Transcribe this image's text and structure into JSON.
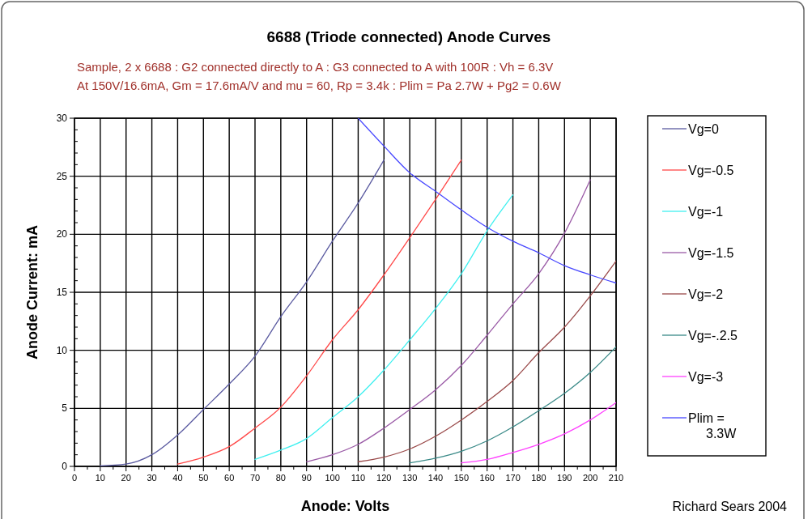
{
  "chart_data": {
    "type": "line",
    "title": "6688 (Triode connected) Anode Curves",
    "subtitle": "Sample, 2 x 6688 : G2 connected directly to A : G3 connected to A with 100R : Vh = 6.3V\nAt 150V/16.6mA, Gm = 17.6mA/V and mu = 60, Rp = 3.4k : Plim = Pa 2.7W + Pg2 = 0.6W",
    "xlabel": "Anode: Volts",
    "ylabel": "Anode Current: mA",
    "annotations": [
      "Richard Sears 2004"
    ],
    "xlim": [
      0,
      210
    ],
    "ylim": [
      0,
      30
    ],
    "xticks": [
      0,
      {
        "value": 5,
        "label": null
      },
      10,
      {
        "value": 15,
        "label": null
      },
      20,
      {
        "value": 25,
        "label": null
      },
      30,
      {
        "value": 35,
        "label": null
      },
      40,
      {
        "value": 45,
        "label": null
      },
      50,
      {
        "value": 55,
        "label": null
      },
      60,
      {
        "value": 65,
        "label": null
      },
      70,
      {
        "value": 75,
        "label": null
      },
      80,
      {
        "value": 85,
        "label": null
      },
      90,
      {
        "value": 95,
        "label": null
      },
      100,
      {
        "value": 105,
        "label": null
      },
      110,
      {
        "value": 115,
        "label": null
      },
      120,
      {
        "value": 125,
        "label": null
      },
      130,
      {
        "value": 135,
        "label": null
      },
      140,
      {
        "value": 145,
        "label": null
      },
      150,
      {
        "value": 155,
        "label": null
      },
      160,
      {
        "value": 165,
        "label": null
      },
      170,
      {
        "value": 175,
        "label": null
      },
      180,
      {
        "value": 185,
        "label": null
      },
      190,
      {
        "value": 195,
        "label": null
      },
      200,
      {
        "value": 205,
        "label": null
      },
      210
    ],
    "yticks": [
      0,
      {
        "value": 1,
        "label": null
      },
      {
        "value": 2,
        "label": null
      },
      {
        "value": 3,
        "label": null
      },
      {
        "value": 4,
        "label": null
      },
      5,
      {
        "value": 6,
        "label": null
      },
      {
        "value": 7,
        "label": null
      },
      {
        "value": 8,
        "label": null
      },
      {
        "value": 9,
        "label": null
      },
      10,
      {
        "value": 11,
        "label": null
      },
      {
        "value": 12,
        "label": null
      },
      {
        "value": 13,
        "label": null
      },
      {
        "value": 14,
        "label": null
      },
      15,
      {
        "value": 16,
        "label": null
      },
      {
        "value": 17,
        "label": null
      },
      {
        "value": 18,
        "label": null
      },
      {
        "value": 19,
        "label": null
      },
      20,
      {
        "value": 21,
        "label": null
      },
      {
        "value": 22,
        "label": null
      },
      {
        "value": 23,
        "label": null
      },
      {
        "value": 24,
        "label": null
      },
      25,
      {
        "value": 26,
        "label": null
      },
      {
        "value": 27,
        "label": null
      },
      {
        "value": 28,
        "label": null
      },
      {
        "value": 29,
        "label": null
      },
      30
    ],
    "grid": true,
    "legend": "right",
    "marker": "none",
    "line_style": "solid",
    "series": [
      {
        "name": "Vg=0",
        "color": "#5a5aa0",
        "x": [
          10,
          20,
          30,
          40,
          50,
          60,
          70,
          80,
          90,
          100,
          110,
          120
        ],
        "values": [
          0.05,
          0.2,
          1.0,
          2.7,
          4.9,
          7.1,
          9.5,
          12.9,
          15.9,
          19.4,
          22.7,
          26.4
        ]
      },
      {
        "name": "Vg=-0.5",
        "color": "#ff4848",
        "x": [
          40,
          50,
          60,
          70,
          80,
          90,
          100,
          110,
          120,
          130,
          140,
          150
        ],
        "values": [
          0.2,
          0.8,
          1.7,
          3.3,
          5.1,
          7.8,
          10.9,
          13.5,
          16.5,
          19.7,
          23.0,
          26.4
        ]
      },
      {
        "name": "Vg=-1",
        "color": "#40f0f0",
        "x": [
          70,
          80,
          90,
          100,
          110,
          120,
          130,
          140,
          150,
          160,
          170
        ],
        "values": [
          0.6,
          1.4,
          2.4,
          4.2,
          6.0,
          8.3,
          10.9,
          13.6,
          16.6,
          20.3,
          23.4
        ]
      },
      {
        "name": "Vg=-1.5",
        "color": "#9a5aa6",
        "x": [
          90,
          100,
          110,
          120,
          130,
          140,
          150,
          160,
          170,
          180,
          190,
          200
        ],
        "values": [
          0.4,
          1.0,
          1.9,
          3.3,
          4.9,
          6.6,
          8.7,
          11.3,
          14.0,
          16.6,
          20.1,
          24.7
        ]
      },
      {
        "name": "Vg=-2",
        "color": "#9a4a4a",
        "x": [
          110,
          120,
          130,
          140,
          150,
          160,
          170,
          180,
          190,
          200,
          210
        ],
        "values": [
          0.4,
          0.8,
          1.5,
          2.6,
          4.0,
          5.6,
          7.4,
          9.8,
          12.0,
          14.7,
          17.7
        ]
      },
      {
        "name": "Vg=-.2.5",
        "color": "#3a8a88",
        "x": [
          130,
          140,
          150,
          160,
          170,
          180,
          190,
          200,
          210
        ],
        "values": [
          0.3,
          0.7,
          1.3,
          2.2,
          3.4,
          4.8,
          6.3,
          8.1,
          10.3
        ]
      },
      {
        "name": "Vg=-3",
        "color": "#ff40ff",
        "x": [
          150,
          160,
          170,
          180,
          190,
          200,
          210
        ],
        "values": [
          0.3,
          0.6,
          1.2,
          1.9,
          2.8,
          4.0,
          5.5
        ]
      },
      {
        "name": "Plim = 3.3W",
        "color": "#4848ff",
        "x": [
          110,
          120,
          130,
          140,
          150,
          160,
          170,
          180,
          190,
          200,
          210
        ],
        "values": [
          30,
          27.6,
          25.3,
          23.7,
          22.1,
          20.6,
          19.4,
          18.4,
          17.3,
          16.5,
          15.8
        ]
      }
    ]
  }
}
